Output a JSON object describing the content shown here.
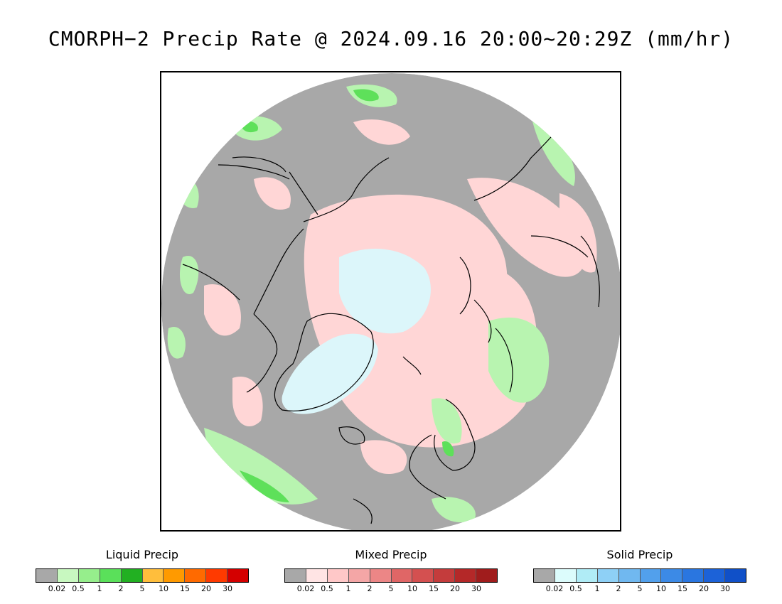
{
  "title": "CMORPH−2 Precip Rate @ 2024.09.16 20:00~20:29Z (mm/hr)",
  "map": {
    "projection": "north polar stereographic",
    "icons": [
      "coastline-lines",
      "precipitation-field"
    ],
    "colors": {
      "no_data": "#a8a8a8",
      "land_outline": "#000000",
      "liquid_light": "#b8f4b0",
      "liquid_mid": "#5ee05a",
      "mixed_light": "#ffd6d6",
      "solid_light": "#dcf6fa"
    }
  },
  "legends": [
    {
      "title": "Liquid Precip",
      "colors": [
        "#a8a8a8",
        "#c8f8c0",
        "#96ee8c",
        "#5ae05a",
        "#22b022",
        "#ffbe3c",
        "#ff9a00",
        "#ff6a00",
        "#ff3a00",
        "#d40000"
      ],
      "ticks": [
        "0.02",
        "0.5",
        "1",
        "2",
        "5",
        "10",
        "15",
        "20",
        "30"
      ]
    },
    {
      "title": "Mixed Precip",
      "colors": [
        "#a8a8a8",
        "#ffe4e4",
        "#ffc8c8",
        "#f4a6a6",
        "#ec8686",
        "#e06666",
        "#d45050",
        "#c43c3c",
        "#b42828",
        "#a01c1c"
      ],
      "ticks": [
        "0.02",
        "0.5",
        "1",
        "2",
        "5",
        "10",
        "15",
        "20",
        "30"
      ]
    },
    {
      "title": "Solid Precip",
      "colors": [
        "#a8a8a8",
        "#dcfcfc",
        "#b0ecf6",
        "#8ed0f6",
        "#70b8f0",
        "#52a0ec",
        "#3c8ae6",
        "#2a76e0",
        "#1c62d8",
        "#1050c8"
      ],
      "ticks": [
        "0.02",
        "0.5",
        "1",
        "2",
        "5",
        "10",
        "15",
        "20",
        "30"
      ]
    }
  ]
}
